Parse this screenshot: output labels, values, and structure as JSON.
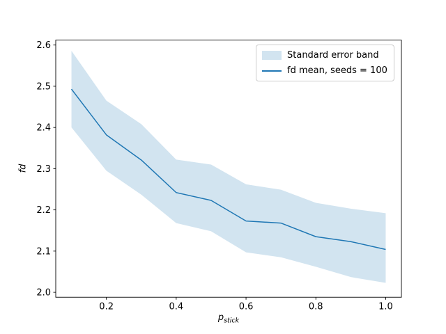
{
  "chart_data": {
    "type": "line",
    "title": "",
    "x": [
      0.1,
      0.2,
      0.3,
      0.4,
      0.5,
      0.6,
      0.7,
      0.8,
      0.9,
      1.0
    ],
    "series": [
      {
        "name": "fd mean, seeds = 100",
        "values": [
          2.493,
          2.382,
          2.321,
          2.242,
          2.223,
          2.173,
          2.168,
          2.135,
          2.123,
          2.104
        ],
        "color": "#1f77b4",
        "line_width": 1.5
      }
    ],
    "band": {
      "name": "Standard error band",
      "upper": [
        2.586,
        2.465,
        2.408,
        2.322,
        2.31,
        2.262,
        2.249,
        2.217,
        2.203,
        2.192
      ],
      "lower": [
        2.4,
        2.295,
        2.237,
        2.168,
        2.148,
        2.097,
        2.085,
        2.062,
        2.037,
        2.023
      ],
      "fill": "rgba(31,119,180,0.2)"
    },
    "xlabel": {
      "main": "p",
      "sub": "stick"
    },
    "ylabel": "fd",
    "xlim": [
      0.055,
      1.045
    ],
    "ylim": [
      1.988,
      2.612
    ],
    "xticks": {
      "values": [
        0.2,
        0.4,
        0.6,
        0.8,
        1.0
      ],
      "labels": [
        "0.2",
        "0.4",
        "0.6",
        "0.8",
        "1.0"
      ]
    },
    "yticks": {
      "values": [
        2.0,
        2.1,
        2.2,
        2.3,
        2.4,
        2.5,
        2.6
      ],
      "labels": [
        "2.0",
        "2.1",
        "2.2",
        "2.3",
        "2.4",
        "2.5",
        "2.6"
      ]
    },
    "grid": false,
    "legend": {
      "position": "upper right",
      "entries": [
        {
          "label": "Standard error band",
          "type": "band"
        },
        {
          "label": "fd mean, seeds = 100",
          "type": "line"
        }
      ]
    }
  },
  "colors": {
    "line": "#1f77b4",
    "band_fill": "rgba(31,119,180,0.2)",
    "background": "#ffffff",
    "spine": "#000000",
    "tick_label": "#000000",
    "legend_border": "#cccccc"
  }
}
